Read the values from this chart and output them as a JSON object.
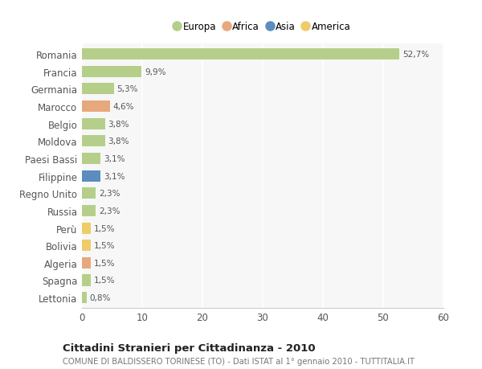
{
  "categories": [
    "Romania",
    "Francia",
    "Germania",
    "Marocco",
    "Belgio",
    "Moldova",
    "Paesi Bassi",
    "Filippine",
    "Regno Unito",
    "Russia",
    "Perù",
    "Bolivia",
    "Algeria",
    "Spagna",
    "Lettonia"
  ],
  "values": [
    52.7,
    9.9,
    5.3,
    4.6,
    3.8,
    3.8,
    3.1,
    3.1,
    2.3,
    2.3,
    1.5,
    1.5,
    1.5,
    1.5,
    0.8
  ],
  "labels": [
    "52,7%",
    "9,9%",
    "5,3%",
    "4,6%",
    "3,8%",
    "3,8%",
    "3,1%",
    "3,1%",
    "2,3%",
    "2,3%",
    "1,5%",
    "1,5%",
    "1,5%",
    "1,5%",
    "0,8%"
  ],
  "colors": [
    "#b5cf8a",
    "#b5cf8a",
    "#b5cf8a",
    "#e8a87c",
    "#b5cf8a",
    "#b5cf8a",
    "#b5cf8a",
    "#5b8dbf",
    "#b5cf8a",
    "#b5cf8a",
    "#f0cb6a",
    "#f0cb6a",
    "#e8a87c",
    "#b5cf8a",
    "#b5cf8a"
  ],
  "legend_colors": {
    "Europa": "#b5cf8a",
    "Africa": "#e8a87c",
    "Asia": "#5b8dbf",
    "America": "#f0cb6a"
  },
  "title": "Cittadini Stranieri per Cittadinanza - 2010",
  "subtitle": "COMUNE DI BALDISSERO TORINESE (TO) - Dati ISTAT al 1° gennaio 2010 - TUTTITALIA.IT",
  "xlim": [
    0,
    60
  ],
  "xticks": [
    0,
    10,
    20,
    30,
    40,
    50,
    60
  ],
  "background_color": "#ffffff",
  "plot_bg": "#f7f7f7",
  "grid_color": "#ffffff",
  "label_color": "#555555",
  "title_color": "#222222",
  "subtitle_color": "#777777"
}
